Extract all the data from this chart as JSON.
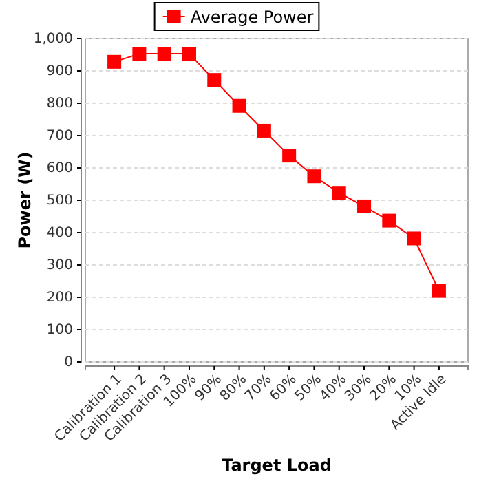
{
  "chart_data": {
    "type": "line",
    "xlabel": "Target Load",
    "ylabel": "Power (W)",
    "categories": [
      "Calibration 1",
      "Calibration 2",
      "Calibration 3",
      "100%",
      "90%",
      "80%",
      "70%",
      "60%",
      "50%",
      "40%",
      "30%",
      "20%",
      "10%",
      "Active Idle"
    ],
    "series": [
      {
        "name": "Average Power",
        "color": "#ff0000",
        "values": [
          928,
          953,
          953,
          953,
          872,
          792,
          715,
          638,
          574,
          523,
          481,
          437,
          382,
          220
        ]
      }
    ],
    "ylim": [
      0,
      1000
    ],
    "yticks": [
      0,
      100,
      200,
      300,
      400,
      500,
      600,
      700,
      800,
      900,
      {
        "value": 1000,
        "label": "1,000"
      }
    ],
    "grid": "y",
    "legend": "top",
    "marker": "square",
    "line_style": "solid"
  }
}
